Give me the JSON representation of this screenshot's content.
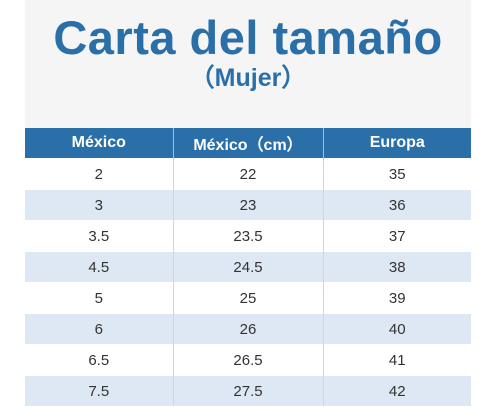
{
  "header": {
    "title": "Carta del tamaño",
    "subtitle": "（Mujer）"
  },
  "table": {
    "columns": [
      "México",
      "México（cm）",
      "Europa"
    ],
    "rows": [
      [
        "2",
        "22",
        "35"
      ],
      [
        "3",
        "23",
        "36"
      ],
      [
        "3.5",
        "23.5",
        "37"
      ],
      [
        "4.5",
        "24.5",
        "38"
      ],
      [
        "5",
        "25",
        "39"
      ],
      [
        "6",
        "26",
        "40"
      ],
      [
        "6.5",
        "26.5",
        "41"
      ],
      [
        "7.5",
        "27.5",
        "42"
      ]
    ]
  },
  "colors": {
    "accent": "#2a6fa8",
    "row_alt": "#dde8f4",
    "header_bg": "#f5f5f5"
  }
}
